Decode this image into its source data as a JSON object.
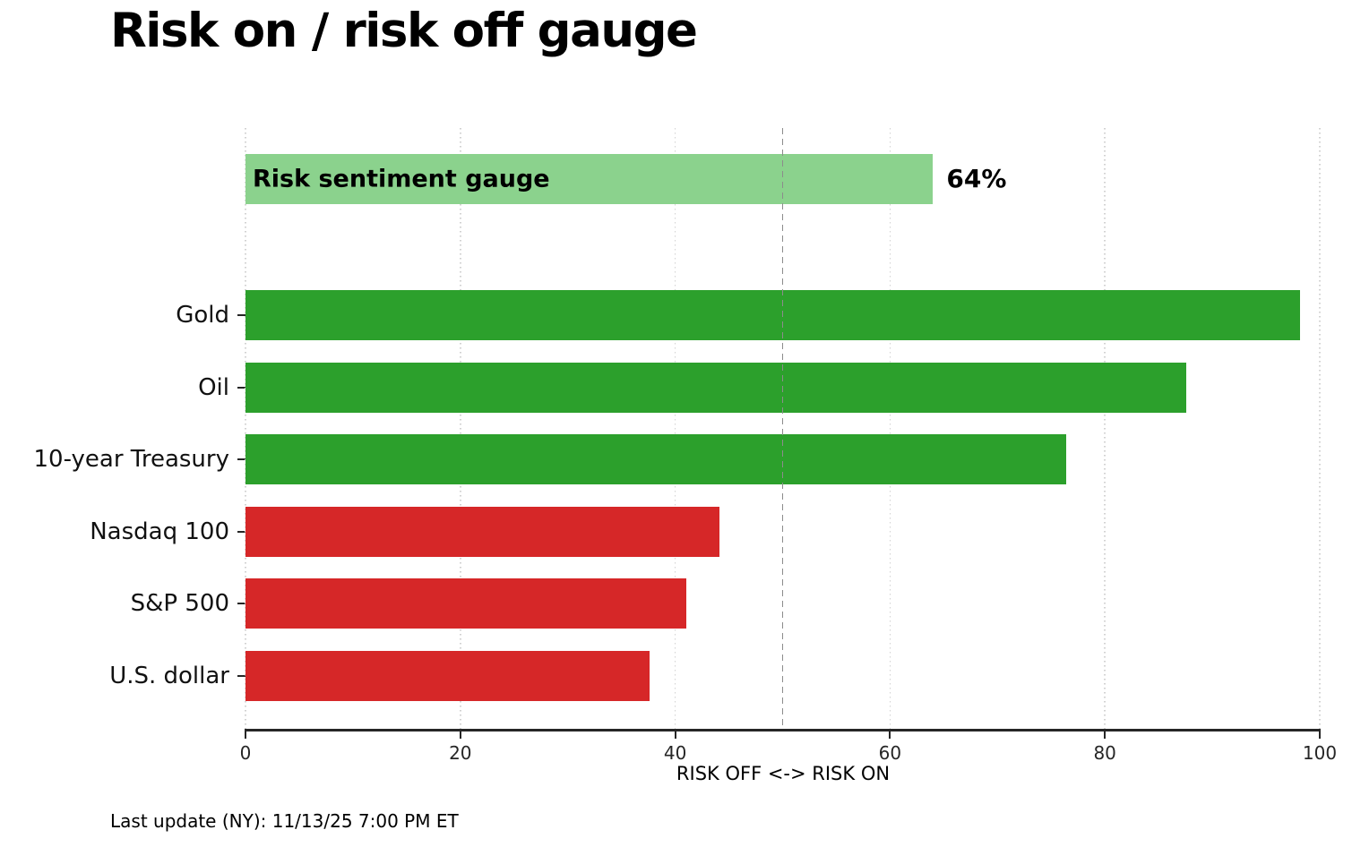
{
  "chart_data": {
    "type": "bar",
    "orientation": "horizontal",
    "title": "Risk on / risk off gauge",
    "xlabel": "RISK OFF <-> RISK ON",
    "xlim": [
      0,
      100
    ],
    "xticks": [
      0,
      20,
      40,
      60,
      80,
      100
    ],
    "grid": "vertical dotted gridlines at each x tick",
    "ref_line": {
      "value": 50,
      "style": "dashed",
      "color": "#8c8c8c"
    },
    "gauge": {
      "label": "Risk sentiment gauge",
      "value": 64,
      "value_label": "64%",
      "color": "#8bd28d"
    },
    "series": [
      {
        "label": "Gold",
        "value": 98.2,
        "color": "#2ca02c"
      },
      {
        "label": "Oil",
        "value": 87.6,
        "color": "#2ca02c"
      },
      {
        "label": "10-year Treasury",
        "value": 76.4,
        "color": "#2ca02c"
      },
      {
        "label": "Nasdaq 100",
        "value": 44.1,
        "color": "#d62728"
      },
      {
        "label": "S&P 500",
        "value": 41.0,
        "color": "#d62728"
      },
      {
        "label": "U.S. dollar",
        "value": 37.6,
        "color": "#d62728"
      }
    ],
    "colors": {
      "risk_on": "#2ca02c",
      "risk_off": "#d62728",
      "gauge": "#8bd28d"
    }
  },
  "footer": {
    "last_update": "Last update (NY): 11/13/25 7:00 PM ET"
  }
}
